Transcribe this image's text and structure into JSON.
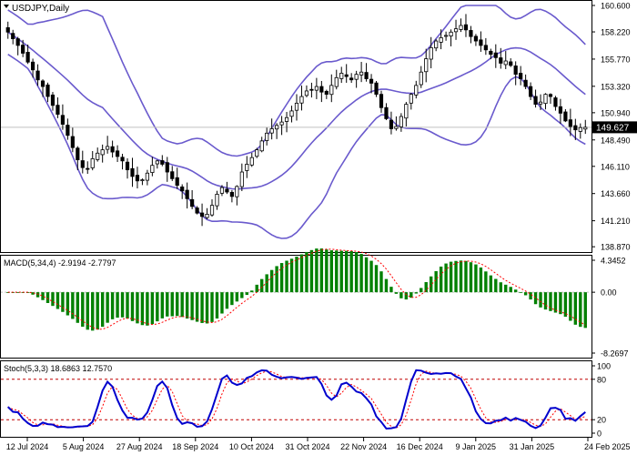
{
  "chart_data": [
    {
      "type": "candlestick",
      "panel": "price",
      "title": "USDJPY,Daily",
      "ylim": [
        138.8,
        160.6
      ],
      "y_ticks": [
        "160.600",
        "158.220",
        "155.770",
        "153.320",
        "150.940",
        "148.490",
        "146.110",
        "143.660",
        "141.210",
        "138.870"
      ],
      "y_tick_values": [
        160.6,
        158.22,
        155.77,
        153.32,
        150.94,
        148.49,
        146.11,
        143.66,
        141.21,
        138.87
      ],
      "current_price": "149.627",
      "current_price_value": 149.627,
      "bollinger_bands": "on",
      "up_color": "#ffffff",
      "down_color": "#000000",
      "band_color": "#6a5acd",
      "closes": [
        158.2,
        157.6,
        157.0,
        156.3,
        155.5,
        154.8,
        153.9,
        153.3,
        152.4,
        151.6,
        150.8,
        149.9,
        148.9,
        147.8,
        146.7,
        146.0,
        145.9,
        146.8,
        147.3,
        147.6,
        147.9,
        147.4,
        147.0,
        146.6,
        145.8,
        145.2,
        144.8,
        144.9,
        145.5,
        146.2,
        146.6,
        146.3,
        145.6,
        145.0,
        144.4,
        143.9,
        143.2,
        142.5,
        141.9,
        141.6,
        141.8,
        142.6,
        143.6,
        144.2,
        143.8,
        143.4,
        144.3,
        145.6,
        146.3,
        146.9,
        147.6,
        148.4,
        149.1,
        149.5,
        149.8,
        150.1,
        150.5,
        151.1,
        151.8,
        152.4,
        152.9,
        153.0,
        153.3,
        152.8,
        152.6,
        153.4,
        154.1,
        154.5,
        154.2,
        153.9,
        154.4,
        154.6,
        154.0,
        153.6,
        152.6,
        151.4,
        150.4,
        149.5,
        149.7,
        150.6,
        151.7,
        152.6,
        153.4,
        154.6,
        155.8,
        156.8,
        157.4,
        157.7,
        157.9,
        158.2,
        158.5,
        158.8,
        158.4,
        157.8,
        157.4,
        157.0,
        156.6,
        156.2,
        155.9,
        155.4,
        155.6,
        155.2,
        154.4,
        154.0,
        153.3,
        152.4,
        151.7,
        151.9,
        152.6,
        152.4,
        151.5,
        150.9,
        150.2,
        149.7,
        149.4,
        149.6,
        149.627
      ],
      "x_tick_labels": [
        "12 Jul 2024",
        "5 Aug 2024",
        "27 Aug 2024",
        "18 Sep 2024",
        "10 Oct 2024",
        "31 Oct 2024",
        "22 Nov 2024",
        "16 Dec 2024",
        "9 Jan 2025",
        "31 Jan 2025",
        "24 Feb 2025"
      ]
    },
    {
      "type": "bar",
      "panel": "macd",
      "title": "MACD(5,34,4) -2.9194 -2.7797",
      "indicator": "MACD(5,34,4)",
      "last_main": -2.9194,
      "last_signal": -2.7797,
      "ylim": [
        -8.2697,
        4.3452
      ],
      "y_ticks": [
        "4.3452",
        "0.00",
        "-8.2697"
      ],
      "y_tick_values": [
        4.3452,
        0,
        -8.2697
      ],
      "bar_color": "#008000",
      "signal_color": "#ff0000"
    },
    {
      "type": "line",
      "panel": "stochastic",
      "title": "Stoch(5,3,3) 18.6863 12.7570",
      "indicator": "Stoch(5,3,3)",
      "last_main": 18.6863,
      "last_signal": 12.757,
      "ylim": [
        0,
        100
      ],
      "y_ticks": [
        "100",
        "80",
        "20",
        "0"
      ],
      "y_tick_values": [
        100,
        80,
        20,
        0
      ],
      "levels": [
        80,
        20
      ],
      "main_color": "#0000cd",
      "signal_color": "#ff0000"
    }
  ]
}
